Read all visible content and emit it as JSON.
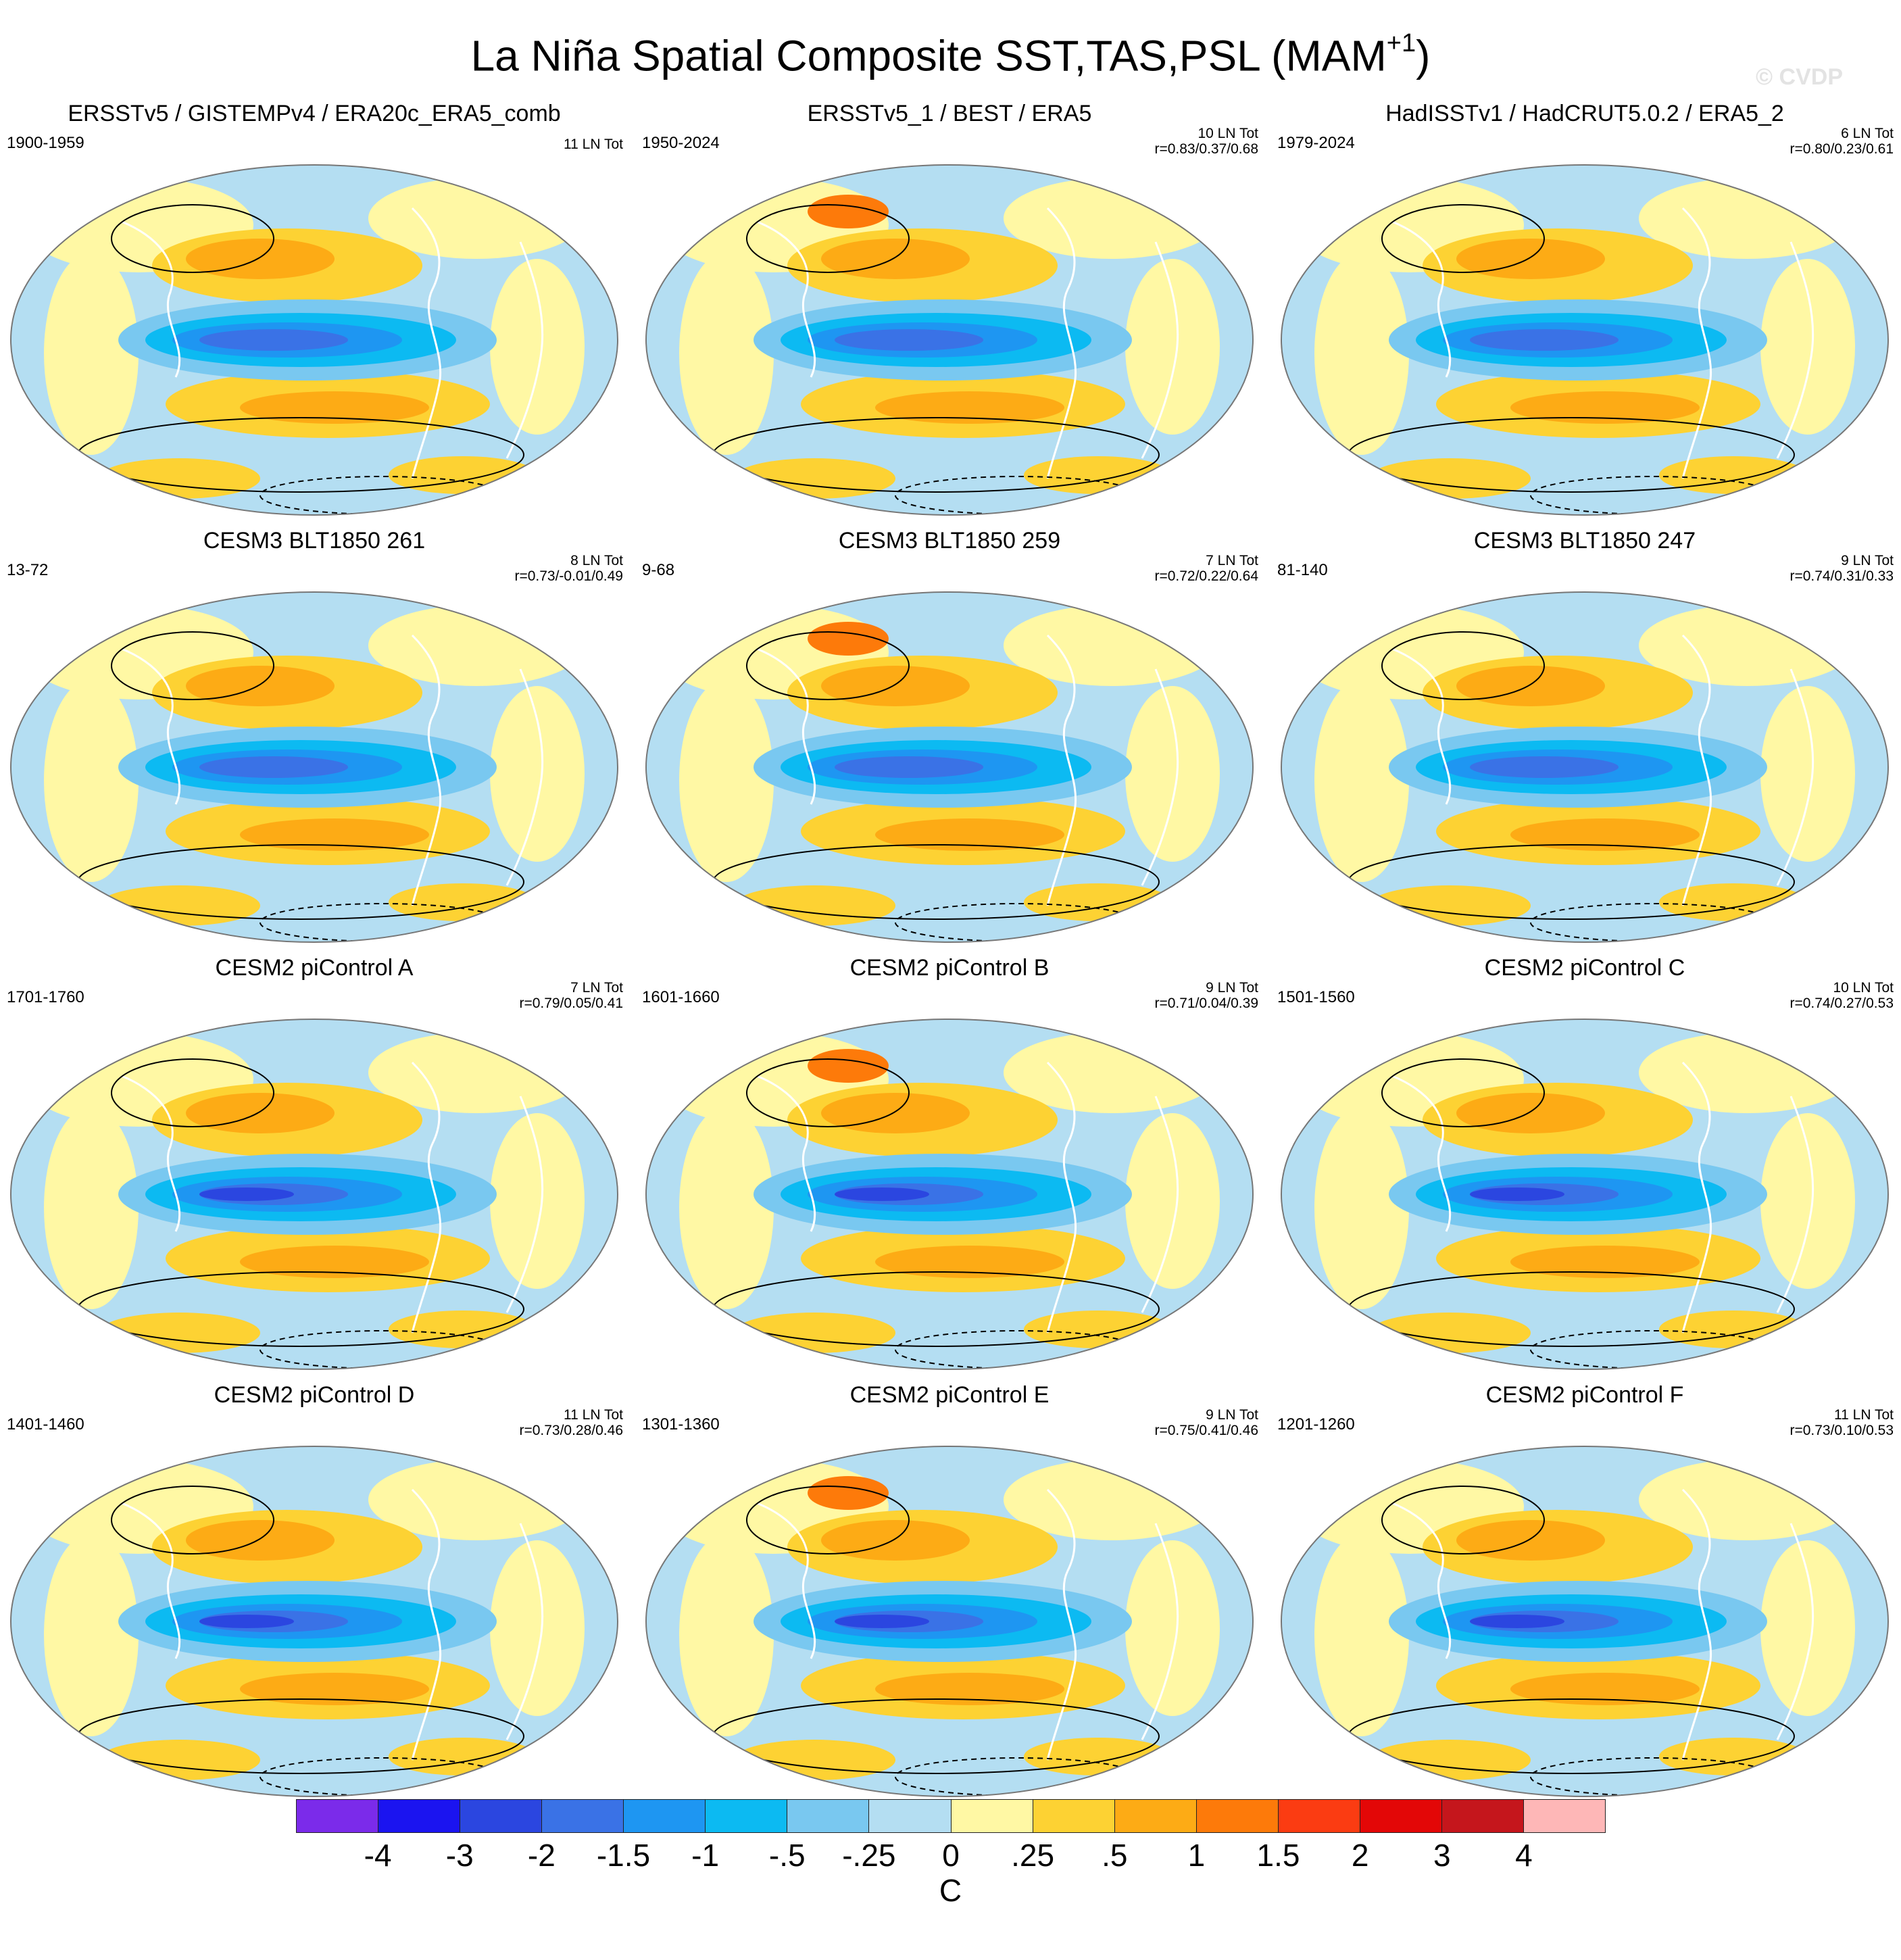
{
  "header": {
    "title_main": "La Niña Spatial Composite SST,TAS,PSL (MAM",
    "title_sup": "+1",
    "title_end": ")",
    "watermark": "© CVDP"
  },
  "panels": [
    {
      "title": "ERSSTv5 / GISTEMPv4 / ERA20c_ERA5_comb",
      "years": "1900-1959",
      "events": "11 LN Tot",
      "corr": ""
    },
    {
      "title": "ERSSTv5_1 / BEST / ERA5",
      "years": "1950-2024",
      "events": "10 LN Tot",
      "corr": "r=0.83/0.37/0.68"
    },
    {
      "title": "HadISSTv1 / HadCRUT5.0.2 / ERA5_2",
      "years": "1979-2024",
      "events": "6 LN Tot",
      "corr": "r=0.80/0.23/0.61"
    },
    {
      "title": "CESM3 BLT1850 261",
      "years": "13-72",
      "events": "8 LN Tot",
      "corr": "r=0.73/-0.01/0.49"
    },
    {
      "title": "CESM3 BLT1850 259",
      "years": "9-68",
      "events": "7 LN Tot",
      "corr": "r=0.72/0.22/0.64"
    },
    {
      "title": "CESM3 BLT1850 247",
      "years": "81-140",
      "events": "9 LN Tot",
      "corr": "r=0.74/0.31/0.33"
    },
    {
      "title": "CESM2 piControl A",
      "years": "1701-1760",
      "events": "7 LN Tot",
      "corr": "r=0.79/0.05/0.41"
    },
    {
      "title": "CESM2 piControl B",
      "years": "1601-1660",
      "events": "9 LN Tot",
      "corr": "r=0.71/0.04/0.39"
    },
    {
      "title": "CESM2 piControl C",
      "years": "1501-1560",
      "events": "10 LN Tot",
      "corr": "r=0.74/0.27/0.53"
    },
    {
      "title": "CESM2 piControl D",
      "years": "1401-1460",
      "events": "11 LN Tot",
      "corr": "r=0.73/0.28/0.46"
    },
    {
      "title": "CESM2 piControl E",
      "years": "1301-1360",
      "events": "9 LN Tot",
      "corr": "r=0.75/0.41/0.46"
    },
    {
      "title": "CESM2 piControl F",
      "years": "1201-1260",
      "events": "11 LN Tot",
      "corr": "r=0.73/0.10/0.53"
    }
  ],
  "colorbar": {
    "colors": [
      "#7b2bea",
      "#1b14f0",
      "#2b46e0",
      "#3a72e6",
      "#1e96f2",
      "#0cbaf2",
      "#79c8f0",
      "#b4def2",
      "#fff8a4",
      "#fdd233",
      "#fdab15",
      "#fd7a0a",
      "#fb3c12",
      "#e30707",
      "#c5161c",
      "#feb7b7"
    ],
    "labels": [
      "-4",
      "-3",
      "-2",
      "-1.5",
      "-1",
      "-.5",
      "-.25",
      "0",
      ".25",
      ".5",
      "1",
      "1.5",
      "2",
      "3",
      "4"
    ],
    "unit": "C"
  }
}
